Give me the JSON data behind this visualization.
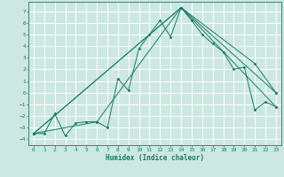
{
  "title": "",
  "xlabel": "Humidex (Indice chaleur)",
  "bg_color": "#cce8e0",
  "grid_color": "#ffffff",
  "line_color": "#1a7a6a",
  "xlim": [
    -0.5,
    23.5
  ],
  "ylim": [
    -4.5,
    7.8
  ],
  "xticks": [
    0,
    1,
    2,
    3,
    4,
    5,
    6,
    7,
    8,
    9,
    10,
    11,
    12,
    13,
    14,
    15,
    16,
    17,
    18,
    19,
    20,
    21,
    22,
    23
  ],
  "yticks": [
    -4,
    -3,
    -2,
    -1,
    0,
    1,
    2,
    3,
    4,
    5,
    6,
    7
  ],
  "line1": [
    [
      0,
      -3.5
    ],
    [
      1,
      -3.5
    ],
    [
      2,
      -1.8
    ],
    [
      3,
      -3.7
    ],
    [
      4,
      -2.6
    ],
    [
      5,
      -2.5
    ],
    [
      6,
      -2.5
    ],
    [
      7,
      -3.0
    ],
    [
      8,
      1.2
    ],
    [
      9,
      0.2
    ],
    [
      10,
      3.8
    ],
    [
      11,
      5.0
    ],
    [
      12,
      6.2
    ],
    [
      13,
      4.8
    ],
    [
      14,
      7.3
    ],
    [
      15,
      6.2
    ],
    [
      16,
      5.0
    ],
    [
      17,
      4.2
    ],
    [
      18,
      3.5
    ],
    [
      19,
      2.0
    ],
    [
      20,
      2.2
    ],
    [
      21,
      -1.5
    ],
    [
      22,
      -0.8
    ],
    [
      23,
      -1.2
    ]
  ],
  "line2": [
    [
      0,
      -3.5
    ],
    [
      6,
      -2.5
    ],
    [
      14,
      7.3
    ],
    [
      21,
      2.5
    ],
    [
      23,
      0.0
    ]
  ],
  "line3": [
    [
      0,
      -3.5
    ],
    [
      14,
      7.3
    ],
    [
      23,
      -1.2
    ]
  ],
  "line4": [
    [
      0,
      -3.5
    ],
    [
      14,
      7.3
    ],
    [
      23,
      0.0
    ]
  ]
}
